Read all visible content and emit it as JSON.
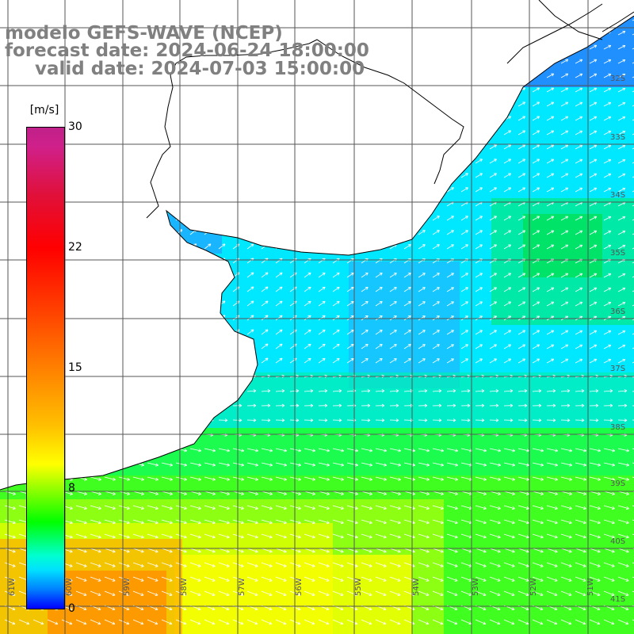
{
  "title": {
    "line1": "modelo GEFS-WAVE (NCEP)",
    "line2": "forecast date: 2024-06-24 18:00:00",
    "line3": "valid date: 2024-07-03 15:00:00"
  },
  "colorbar": {
    "unit": "[m/s]",
    "ticks": [
      "30",
      "22",
      "15",
      "8",
      "0"
    ]
  },
  "lat_labels": [
    "32S",
    "33S",
    "34S",
    "35S",
    "36S",
    "37S",
    "38S",
    "39S",
    "40S",
    "41S"
  ],
  "lon_labels": [
    "61W",
    "60W",
    "59W",
    "58W",
    "57W",
    "56W",
    "55W",
    "54W",
    "53W",
    "52W",
    "51W"
  ],
  "colors": {
    "land": "#ffffff",
    "grid": "#555555",
    "coast": "#000000",
    "arrows": "#ffffff"
  }
}
